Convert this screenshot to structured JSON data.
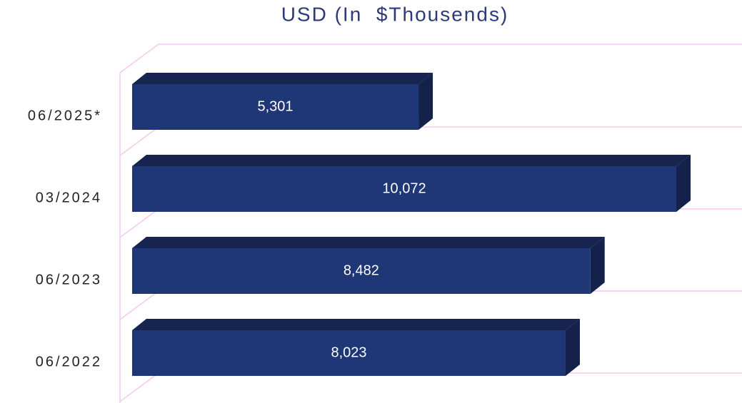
{
  "chart_data": {
    "type": "bar3d_horizontal",
    "title": "USD (In  $Thousends)",
    "categories": [
      "06/2025*",
      "03/2024",
      "06/2023",
      "06/2022"
    ],
    "values": [
      5301,
      10072,
      8482,
      8023
    ],
    "value_labels": [
      "5,301",
      "10,072",
      "8,482",
      "8,023"
    ],
    "color": "#1f3677"
  }
}
